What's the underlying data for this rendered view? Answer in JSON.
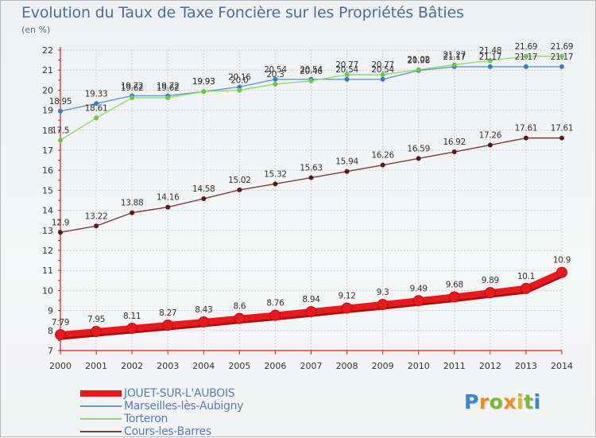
{
  "title": "Evolution du Taux de Taxe Foncière sur les Propriétés Bâties",
  "unit_label": "(en %)",
  "brand": "Proxiti",
  "colors": {
    "axis": "#d81b1b",
    "grid": "#cfcfcf",
    "tick_text": "#333333",
    "data_label": "#333333"
  },
  "chart_data": {
    "type": "line",
    "title": "Evolution du Taux de Taxe Foncière sur les Propriétés Bâties",
    "ylabel": "(en %)",
    "xlabel": "",
    "ylim": [
      7,
      22
    ],
    "yticks": [
      7,
      8,
      9,
      10,
      11,
      12,
      13,
      14,
      15,
      16,
      17,
      18,
      19,
      20,
      21,
      22
    ],
    "categories": [
      "2000",
      "2001",
      "2002",
      "2003",
      "2004",
      "2005",
      "2006",
      "2007",
      "2008",
      "2009",
      "2010",
      "2011",
      "2012",
      "2013",
      "2014"
    ],
    "grid": true,
    "legend_position": "bottom-left",
    "series": [
      {
        "name": "JOUET-SUR-L'AUBOIS",
        "color": "#e8191c",
        "style": "thick",
        "values": [
          7.79,
          7.95,
          8.11,
          8.27,
          8.43,
          8.6,
          8.76,
          8.94,
          9.12,
          9.3,
          9.49,
          9.68,
          9.89,
          10.1,
          10.9
        ],
        "labels": [
          "7.79",
          "7.95",
          "8.11",
          "8.27",
          "8.43",
          "8.6",
          "8.76",
          "8.94",
          "9.12",
          "9.3",
          "9.49",
          "9.68",
          "9.89",
          "10.1",
          "10.9"
        ]
      },
      {
        "name": "Marseilles-lès-Aubigny",
        "color": "#5b9bd5",
        "marker_color": "#3a7cc4",
        "style": "thin",
        "values": [
          18.95,
          19.33,
          19.72,
          19.72,
          19.93,
          20.16,
          20.54,
          20.54,
          20.54,
          20.54,
          20.98,
          21.17,
          21.17,
          21.17,
          21.17
        ],
        "labels": [
          "18.95",
          "19.33",
          "19.72",
          "19.72",
          "19.93",
          "20.16",
          "20.54",
          "20.54",
          "20.54",
          "20.54",
          "20.98",
          "21.17",
          "21.17",
          "21.17",
          "21.17"
        ]
      },
      {
        "name": "Torteron",
        "color": "#8fdc6e",
        "marker_color": "#6cc64a",
        "style": "thin",
        "values": [
          17.5,
          18.61,
          19.62,
          19.62,
          19.93,
          20.0,
          20.3,
          20.46,
          20.77,
          20.77,
          21.02,
          21.27,
          21.48,
          21.69,
          21.69
        ],
        "labels": [
          "17.5",
          "18.61",
          "19.62",
          "19.62",
          "19.93",
          "20.0",
          "20.3",
          "20.46",
          "20.77",
          "20.77",
          "21.02",
          "21.27",
          "21.48",
          "21.69",
          "21.69"
        ]
      },
      {
        "name": "Cours-les-Barres",
        "color": "#7a3d3d",
        "marker_color": "#5a1a1a",
        "style": "thin",
        "values": [
          12.9,
          13.22,
          13.88,
          14.16,
          14.58,
          15.02,
          15.32,
          15.63,
          15.94,
          16.26,
          16.59,
          16.92,
          17.26,
          17.61,
          17.61
        ],
        "labels": [
          "12.9",
          "13.22",
          "13.88",
          "14.16",
          "14.58",
          "15.02",
          "15.32",
          "15.63",
          "15.94",
          "16.26",
          "16.59",
          "16.92",
          "17.26",
          "17.61",
          "17.61"
        ]
      }
    ]
  }
}
